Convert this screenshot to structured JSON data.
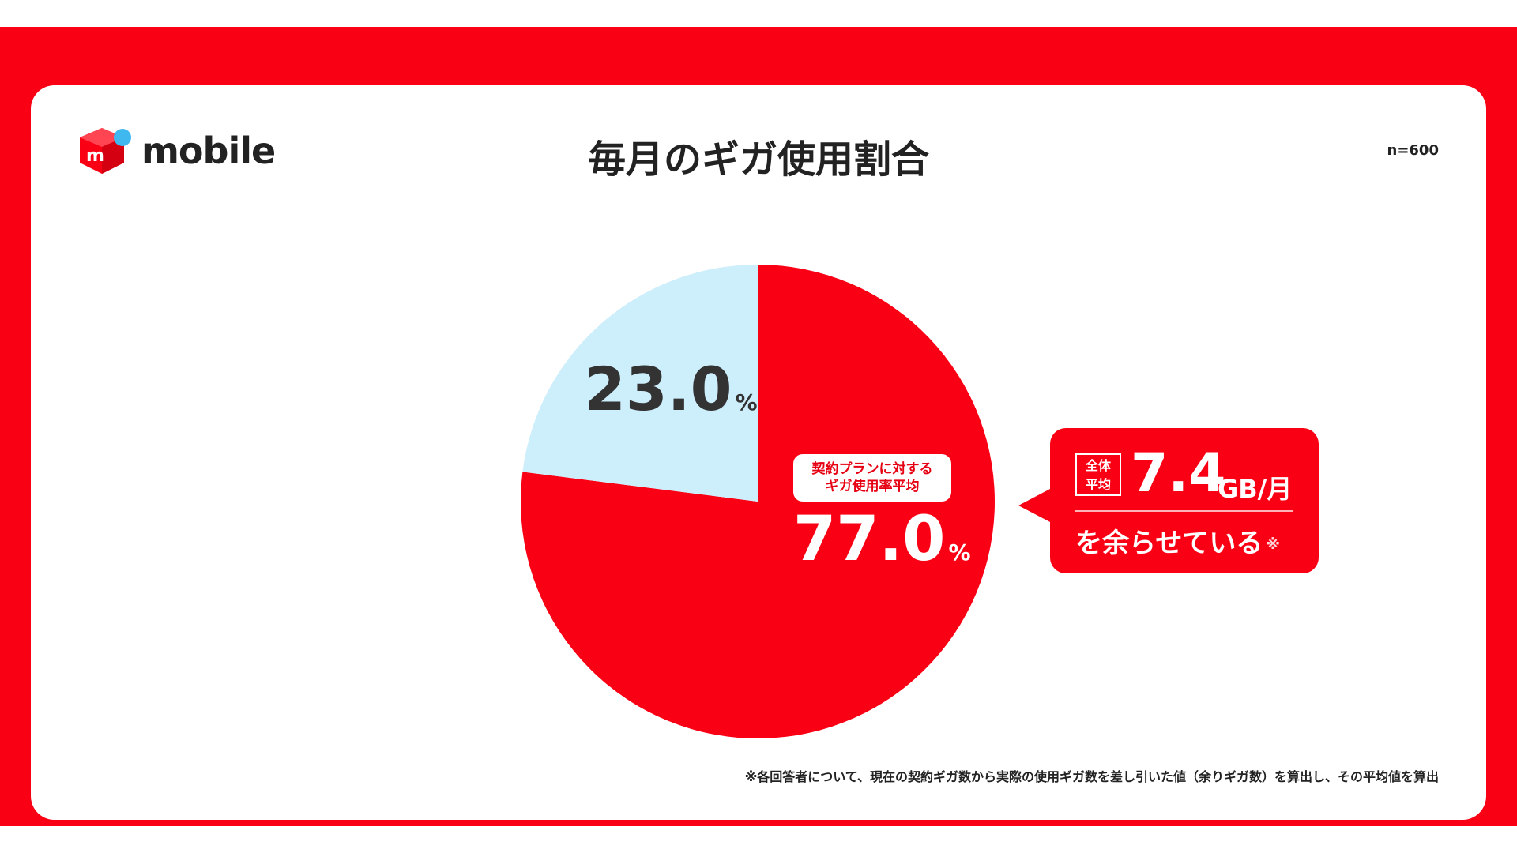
{
  "brand": {
    "name": "mobile",
    "logo_letter": "m",
    "red": "#fa0015",
    "blue": "#3fb8f0"
  },
  "header": {
    "title": "毎月のギガ使用割合",
    "sample_size": "n=600"
  },
  "chart_data": {
    "type": "pie",
    "title": "毎月のギガ使用割合",
    "series": [
      {
        "value": 77.0,
        "label": "77.0",
        "color": "#fa0015"
      },
      {
        "value": 23.0,
        "label": "23.0",
        "color": "#cdeefb"
      }
    ],
    "unit": "%",
    "inner_label": "契約プランに対する\nギガ使用率平均"
  },
  "callout": {
    "tag": "全体\n平均",
    "value": "7.4",
    "unit": "GB/月",
    "text": "を余らせている",
    "mark": "※"
  },
  "footnote": "※各回答者について、現在の契約ギガ数から実際の使用ギガ数を差し引いた値（余りギガ数）を算出し、その平均値を算出"
}
